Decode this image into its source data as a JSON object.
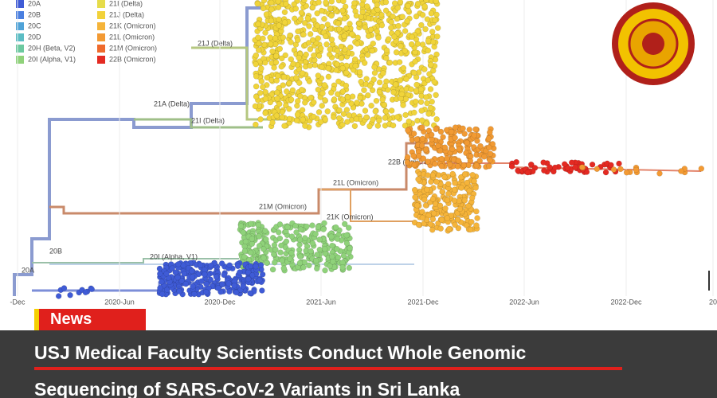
{
  "legend": [
    {
      "name": "20A",
      "color": "#3f5bd6"
    },
    {
      "name": "20B",
      "color": "#4a7fe0"
    },
    {
      "name": "20C",
      "color": "#4fa3d8"
    },
    {
      "name": "20D",
      "color": "#5bbdc4"
    },
    {
      "name": "20H (Beta, V2)",
      "color": "#6cc9a0"
    },
    {
      "name": "20I (Alpha, V1)",
      "color": "#8fd27a"
    },
    {
      "name": "21I (Delta)",
      "color": "#e6dc4a"
    },
    {
      "name": "21J (Delta)",
      "color": "#f2d23a"
    },
    {
      "name": "21K (Omicron)",
      "color": "#f5b43a"
    },
    {
      "name": "21L (Omicron)",
      "color": "#f39a33"
    },
    {
      "name": "21M (Omicron)",
      "color": "#ef6a2c"
    },
    {
      "name": "22B (Omicron)",
      "color": "#e42a22"
    }
  ],
  "clade_labels": [
    "21J (Delta)",
    "21A (Delta)",
    "21I (Delta)",
    "22B (Omicron)",
    "21L (Omicron)",
    "21M (Omicron)",
    "21K (Omicron)",
    "20I (Alpha, V1)",
    "20B",
    "20A"
  ],
  "x_axis_labels": [
    "-Dec",
    "2020-Jun",
    "2020-Dec",
    "2021-Jun",
    "2021-Dec",
    "2022-Jun",
    "2022-Dec",
    "20"
  ],
  "badge": "News",
  "headline": [
    "USJ Medical Faculty Scientists Conduct Whole Genomic",
    "Sequencing of SARS-CoV-2 Variants in Sri Lanka"
  ]
}
